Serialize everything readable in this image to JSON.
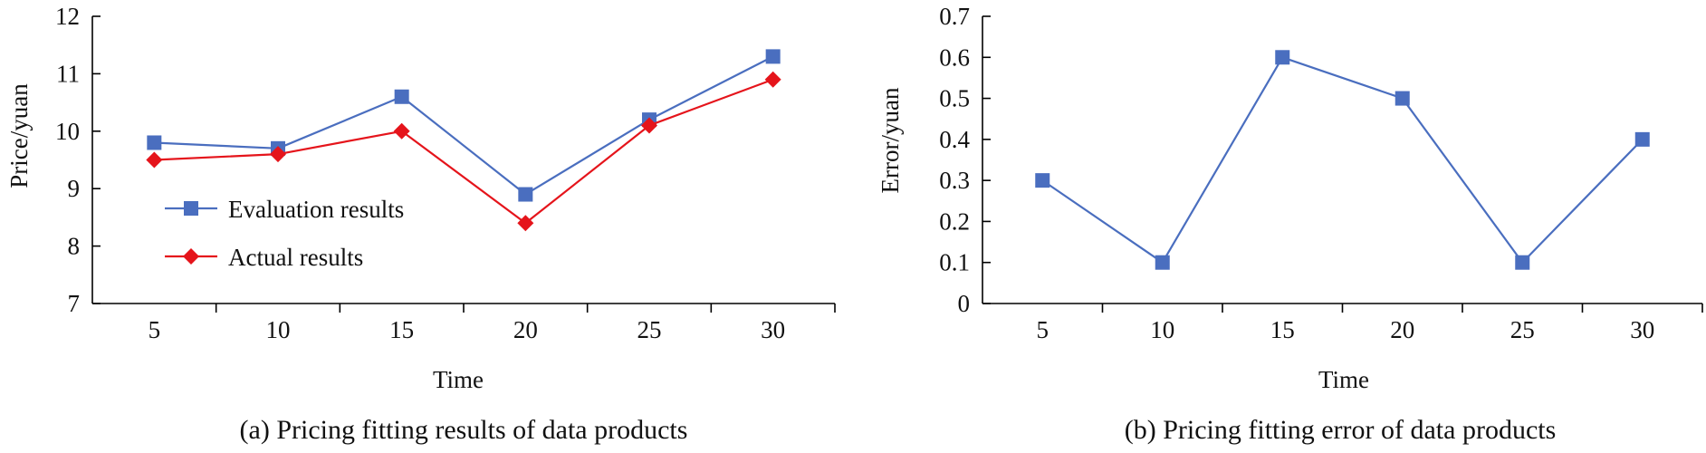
{
  "colors": {
    "evaluation": "#4A6EBF",
    "actual": "#E5141B",
    "error": "#4A6EBF"
  },
  "chart_data": [
    {
      "type": "line",
      "caption": "(a) Pricing fitting results of data products",
      "xlabel": "Time",
      "ylabel": "Price/yuan",
      "categories": [
        "5",
        "10",
        "15",
        "20",
        "25",
        "30"
      ],
      "x": [
        5,
        10,
        15,
        20,
        25,
        30
      ],
      "ylim": [
        7,
        12
      ],
      "yticks": [
        "7",
        "8",
        "9",
        "10",
        "11",
        "12"
      ],
      "legend_position": "left-center",
      "series": [
        {
          "name": "Evaluation results",
          "marker": "square",
          "color": "#4A6EBF",
          "values": [
            9.8,
            9.7,
            10.6,
            8.9,
            10.2,
            11.3
          ]
        },
        {
          "name": "Actual results",
          "marker": "diamond",
          "color": "#E5141B",
          "values": [
            9.5,
            9.6,
            10.0,
            8.4,
            10.1,
            10.9
          ]
        }
      ]
    },
    {
      "type": "line",
      "caption": "(b) Pricing fitting error of data products",
      "xlabel": "Time",
      "ylabel": "Error/yuan",
      "categories": [
        "5",
        "10",
        "15",
        "20",
        "25",
        "30"
      ],
      "x": [
        5,
        10,
        15,
        20,
        25,
        30
      ],
      "ylim": [
        0,
        0.7
      ],
      "yticks": [
        "0",
        "0.1",
        "0.2",
        "0.3",
        "0.4",
        "0.5",
        "0.6",
        "0.7"
      ],
      "series": [
        {
          "marker": "square",
          "color": "#4A6EBF",
          "values": [
            0.3,
            0.1,
            0.6,
            0.5,
            0.1,
            0.4
          ]
        }
      ]
    }
  ]
}
